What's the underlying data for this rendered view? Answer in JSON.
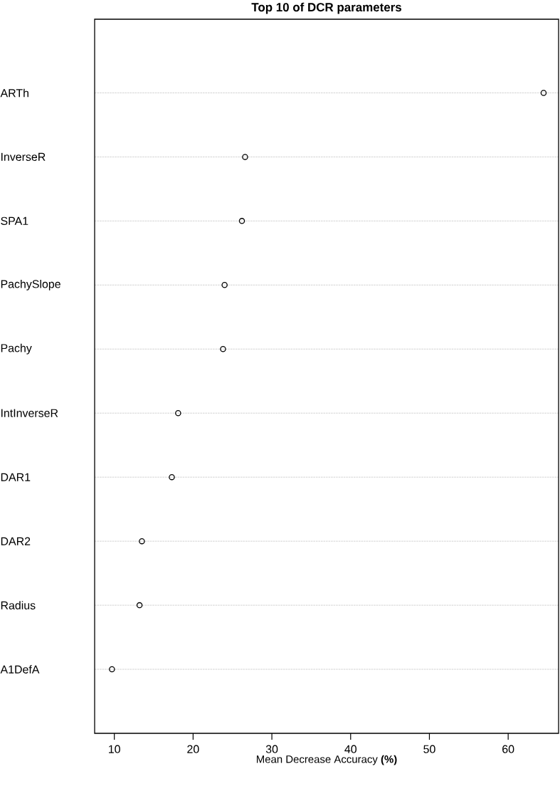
{
  "chart_data": {
    "type": "scatter",
    "orientation": "horizontal",
    "title": "Top 10 of DCR parameters",
    "xlabel": "Mean Decrease Accuracy **(%)**",
    "categories": [
      "ARTh",
      "InverseR",
      "SPA1",
      "PachySlope",
      "Pachy",
      "IntInverseR",
      "DAR1",
      "DAR2",
      "Radius",
      "A1DefA"
    ],
    "values": [
      64.5,
      26.6,
      26.2,
      24.0,
      23.8,
      18.1,
      17.3,
      13.5,
      13.2,
      9.7
    ],
    "color": "#000000",
    "marker": "circle",
    "grid": "y",
    "xlim": [
      7.5,
      66.4
    ],
    "xticks": [
      10,
      20,
      30,
      40,
      50,
      60
    ]
  }
}
